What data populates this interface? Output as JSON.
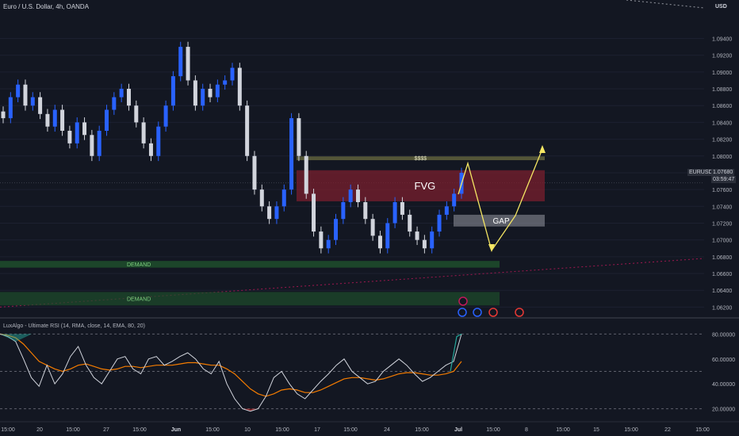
{
  "header": {
    "title": "Euro / U.S. Dollar, 4h, OANDA",
    "currency": "USD"
  },
  "price_badge": {
    "symbol": "EURUSD",
    "price": "1.07680",
    "timer": "03:59:47"
  },
  "indicator_title": "LuxAlgo - Ultimate RSI (14, RMA, close, 14, EMA, 80, 20)",
  "annotations": {
    "fvg": "FVG",
    "gap": "GAP",
    "liquidity": "$$$$",
    "demand_upper": "DEMAND",
    "demand_lower": "DEMAND"
  },
  "colors": {
    "background": "#131722",
    "candle_up": "#2962ff",
    "candle_down": "#d1d4dc",
    "fvg_zone": "#7a1f2e",
    "gap_zone": "#9598a1",
    "demand_zone": "#1e4d2b",
    "liquidity_line": "#8a8a4a",
    "arrow": "#f5e663",
    "rsi_line": "#d1d4dc",
    "signal_line": "#f57c00"
  },
  "chart_data": [
    {
      "type": "line",
      "title": "",
      "y_axis_labels": [
        "1.09400",
        "1.09200",
        "1.09000",
        "1.08800",
        "1.08600",
        "1.08400",
        "1.08200",
        "1.08000",
        "1.07800",
        "1.07600",
        "1.07400",
        "1.07200",
        "1.07000",
        "1.06800",
        "1.06600",
        "1.06400",
        "1.06200"
      ],
      "x_axis_labels": [
        "15:00",
        "20",
        "15:00",
        "27",
        "15:00",
        "Jun",
        "15:00",
        "10",
        "15:00",
        "17",
        "15:00",
        "24",
        "15:00",
        "Jul",
        "15:00",
        "8",
        "15:00",
        "15",
        "15:00",
        "22",
        "15:00"
      ],
      "ylim": [
        1.061,
        1.0965
      ],
      "series": [
        {
          "values": [
            1.0845,
            1.087,
            1.0885,
            1.086,
            1.087,
            1.085,
            1.0835,
            1.0855,
            1.083,
            1.0815,
            1.084,
            1.0825,
            1.08,
            1.083,
            1.0855,
            1.087,
            1.088,
            1.086,
            1.084,
            1.0815,
            1.08,
            1.0835,
            1.086,
            1.0895,
            1.093,
            1.089,
            1.086,
            1.088,
            1.087,
            1.0885,
            1.089,
            1.0905,
            1.086,
            1.08,
            1.076,
            1.074,
            1.0725,
            1.074,
            1.076,
            1.0845,
            1.08,
            1.0755,
            1.071,
            1.069,
            1.07,
            1.0725,
            1.0745,
            1.076,
            1.0745,
            1.0725,
            1.0705,
            1.069,
            1.072,
            1.0745,
            1.073,
            1.071,
            1.07,
            1.069,
            1.071,
            1.073,
            1.074,
            1.0755,
            1.078
          ]
        }
      ],
      "zones": [
        {
          "label": "$$$$",
          "ymin": 1.0795,
          "ymax": 1.07995
        },
        {
          "label": "FVG",
          "ymin": 1.0746,
          "ymax": 1.0783
        },
        {
          "label": "GAP",
          "ymin": 1.0716,
          "ymax": 1.073
        },
        {
          "label": "DEMAND",
          "ymin": 1.0667,
          "ymax": 1.0675
        },
        {
          "label": "DEMAND",
          "ymin": 1.0622,
          "ymax": 1.0638
        }
      ]
    },
    {
      "type": "line",
      "title": "",
      "y_axis_labels": [
        "80.00000",
        "60.00000",
        "40.00000",
        "20.00000"
      ],
      "ylim": [
        14,
        86
      ],
      "reference_lines": [
        80,
        50,
        20
      ],
      "series": [
        {
          "values": [
            80,
            78,
            74,
            60,
            45,
            38,
            55,
            40,
            48,
            62,
            70,
            55,
            45,
            40,
            50,
            60,
            62,
            52,
            48,
            60,
            62,
            55,
            58,
            62,
            65,
            60,
            52,
            48,
            58,
            40,
            28,
            20,
            18,
            20,
            30,
            45,
            50,
            40,
            32,
            28,
            35,
            42,
            48,
            55,
            60,
            50,
            45,
            40,
            42,
            50,
            55,
            60,
            55,
            48,
            42,
            45,
            50,
            55,
            58,
            80
          ]
        },
        {
          "values": [
            80,
            79,
            77,
            72,
            65,
            58,
            55,
            52,
            50,
            52,
            55,
            56,
            54,
            52,
            51,
            52,
            54,
            54,
            53,
            54,
            55,
            55,
            55,
            56,
            57,
            57,
            56,
            55,
            55,
            52,
            48,
            42,
            36,
            32,
            30,
            32,
            35,
            36,
            35,
            33,
            33,
            35,
            38,
            41,
            44,
            45,
            45,
            44,
            43,
            44,
            46,
            48,
            49,
            49,
            48,
            47,
            47,
            48,
            50,
            58
          ]
        }
      ]
    }
  ]
}
